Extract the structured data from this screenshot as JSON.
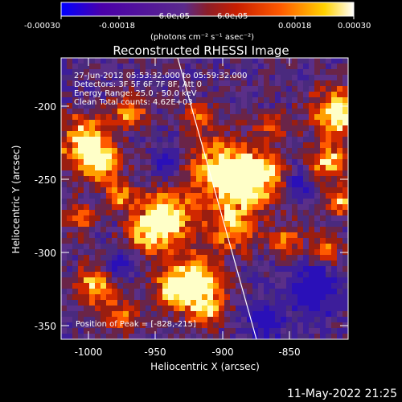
{
  "colorbar": {
    "tick_labels": [
      "-0.00030",
      "-0.00018",
      "-6.0e-05",
      "6.0e-05",
      "0.00018",
      "0.00030"
    ],
    "units_label": "(photons cm⁻² s⁻¹ asec⁻²)",
    "range": [
      -0.0003,
      0.0003
    ],
    "stops": [
      "#0000ff",
      "#4b00aa",
      "#5a2a8c",
      "#8c1e28",
      "#c81e00",
      "#ff5a00",
      "#ffd200",
      "#ffffff"
    ]
  },
  "plot": {
    "title": "Reconstructed RHESSI Image",
    "xlabel": "Heliocentric X (arcsec)",
    "ylabel": "Heliocentric Y (arcsec)",
    "x_ticks": [
      "-1000",
      "-950",
      "-900",
      "-850"
    ],
    "y_ticks": [
      "-200",
      "-250",
      "-300",
      "-350"
    ],
    "xlim": [
      -1022,
      -808
    ],
    "ylim": [
      -362,
      -162
    ]
  },
  "annotations": {
    "line1": "27-Jun-2012 05:53:32.000 to 05:59:32.000",
    "line2": "Detectors: 3F 5F 6F 7F 8F, Att 0",
    "line3": "Energy Range: 25.0 - 50.0 keV",
    "line4": "Clean     Total counts: 4.62E+03",
    "peak": "Position of Peak = [-828,-215]"
  },
  "footer": {
    "timestamp": "11-May-2022 21:25"
  }
}
